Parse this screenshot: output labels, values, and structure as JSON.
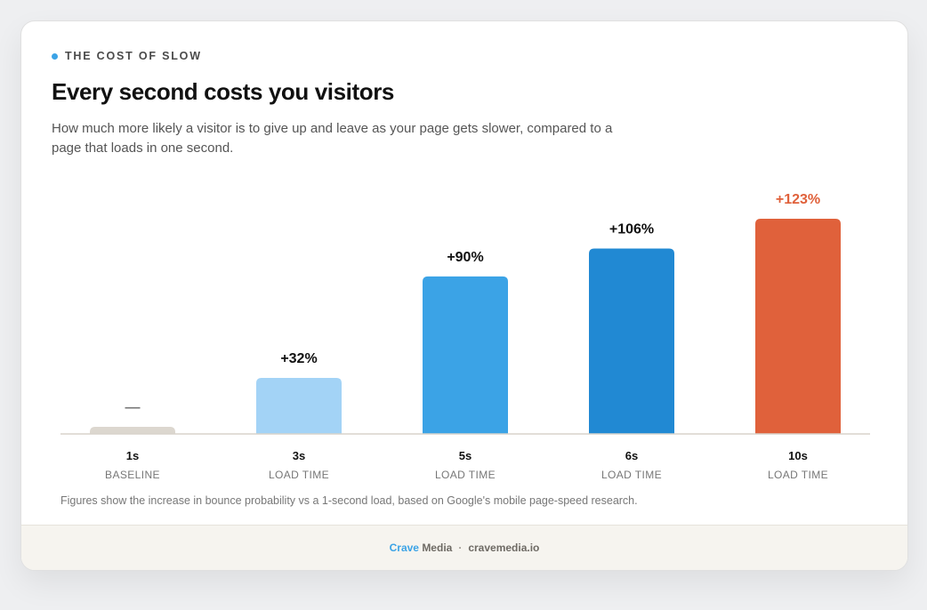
{
  "eyebrow": "THE COST OF SLOW",
  "title": "Every second costs you visitors",
  "subtitle": "How much more likely a visitor is to give up and leave as your page gets slower, compared to a page that loads in one second.",
  "footnote": "Figures show the increase in bounce probability vs a 1-second load, based on Google's mobile page-speed research.",
  "footer": {
    "brand_accent": "Crave",
    "brand_rest": "Media",
    "separator": "·",
    "site": "cravemedia.io"
  },
  "colors": {
    "accent": "#3ba3e6",
    "baseline": "#dcd7cf",
    "light_blue": "#a3d3f6",
    "blue": "#3ba3e6",
    "dark_blue": "#2189d3",
    "orange": "#e0613b"
  },
  "chart_data": {
    "type": "bar",
    "categories": [
      "1s",
      "3s",
      "5s",
      "6s",
      "10s"
    ],
    "sublabels": [
      "BASELINE",
      "LOAD TIME",
      "LOAD TIME",
      "LOAD TIME",
      "LOAD TIME"
    ],
    "values": [
      0,
      32,
      90,
      106,
      123
    ],
    "data_labels": [
      "—",
      "+32%",
      "+90%",
      "+106%",
      "+123%"
    ],
    "bar_colors": [
      "#dcd7cf",
      "#a3d3f6",
      "#3ba3e6",
      "#2189d3",
      "#e0613b"
    ],
    "label_colors": [
      "#777777",
      "#111111",
      "#111111",
      "#111111",
      "#e0613b"
    ],
    "ylim": [
      0,
      123
    ]
  }
}
